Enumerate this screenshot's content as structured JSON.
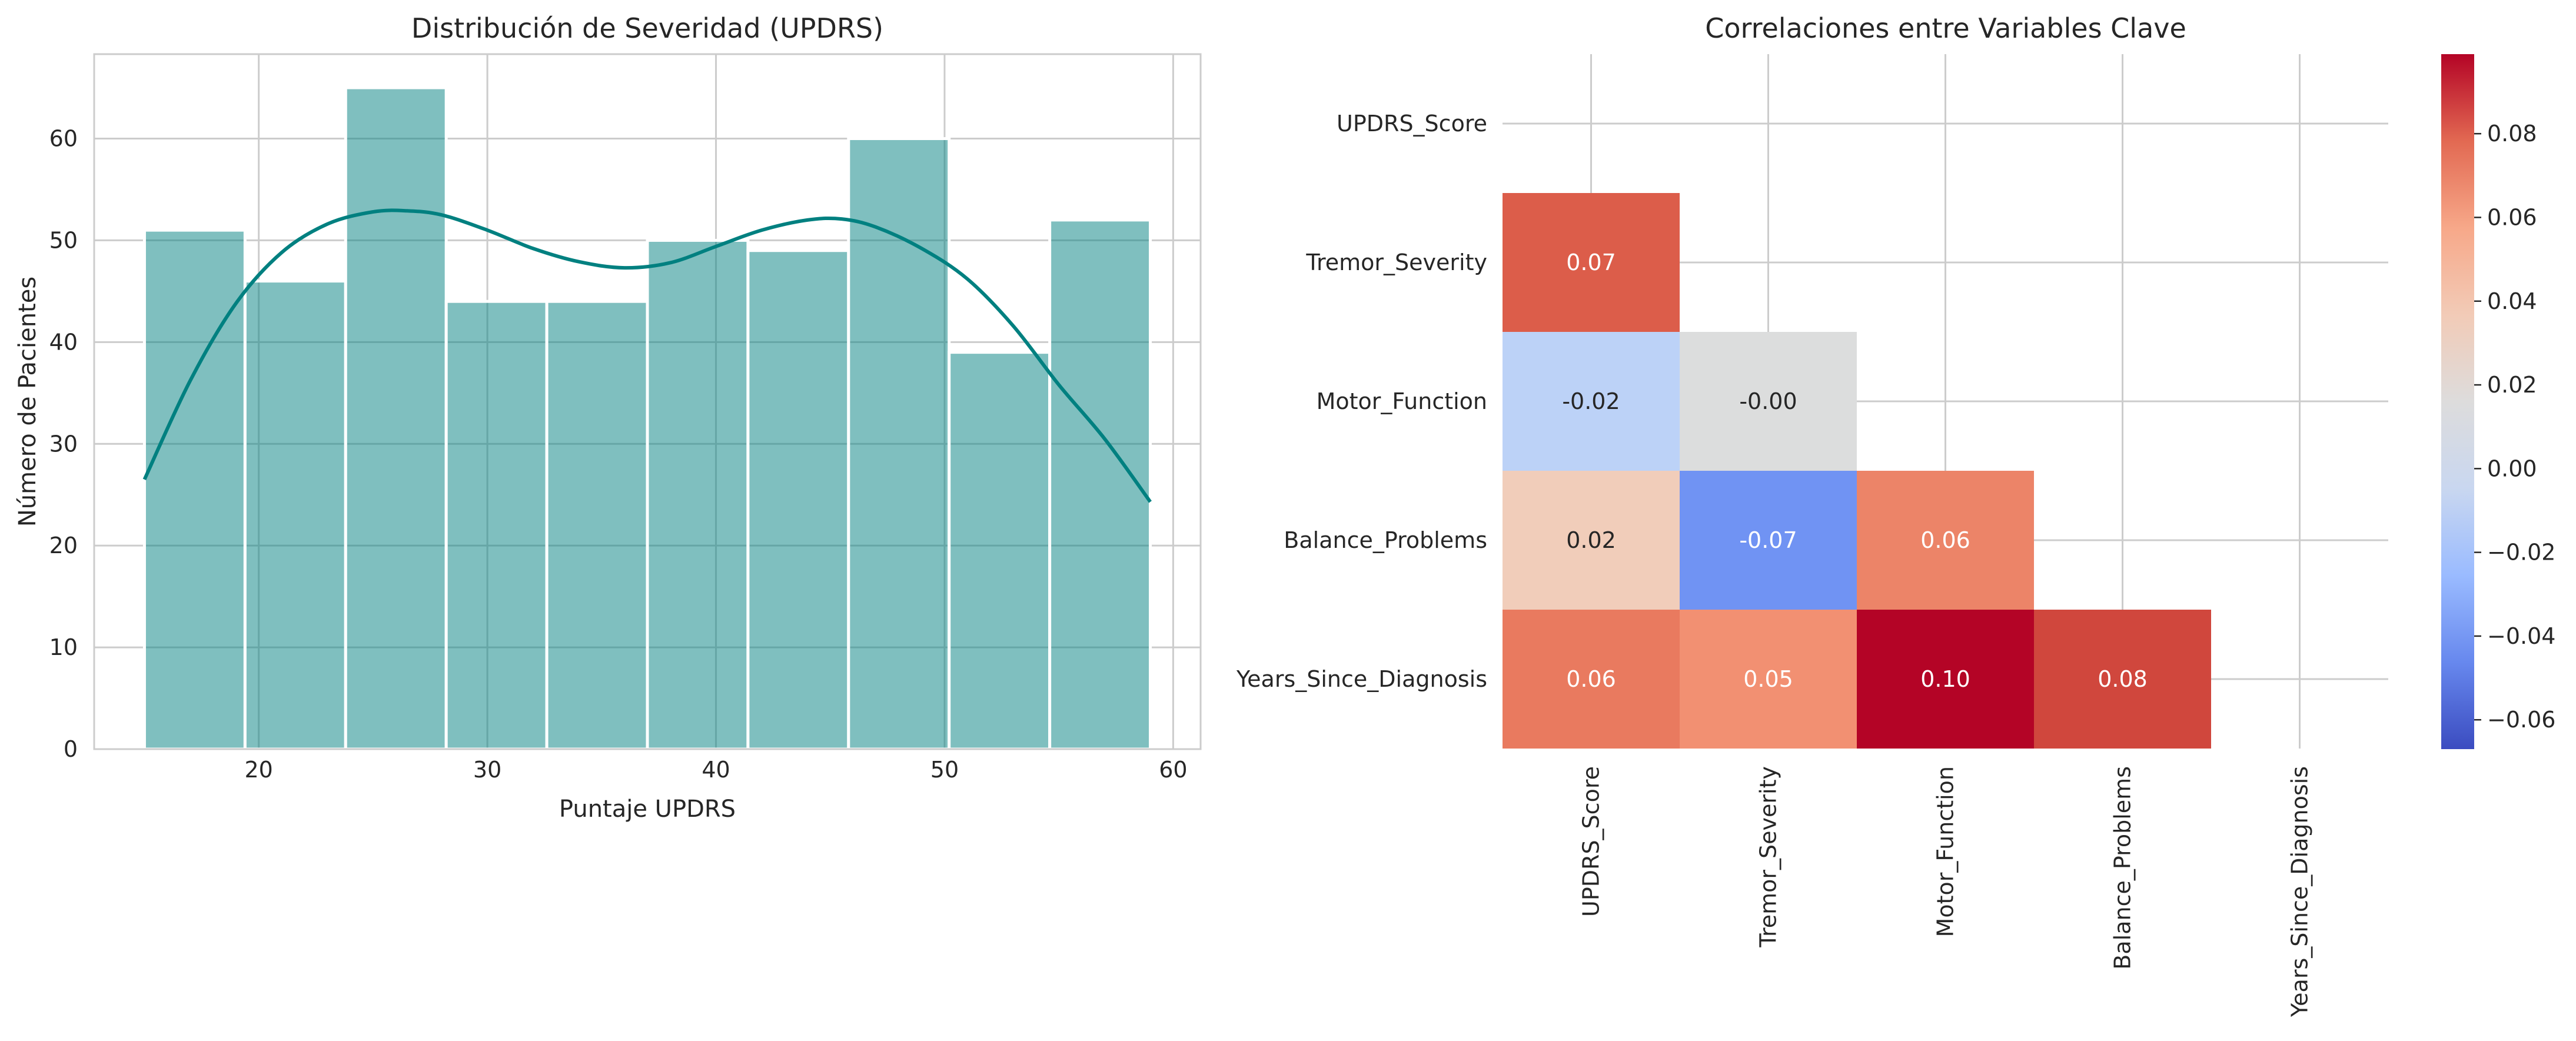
{
  "chart_data": [
    {
      "type": "bar",
      "subtype": "histogram_with_kde",
      "title": "Distribución de Severidad (UPDRS)",
      "xlabel": "Puntaje UPDRS",
      "ylabel": "Número de Pacientes",
      "xlim": [
        12.8,
        61.2
      ],
      "ylim": [
        0,
        68.3
      ],
      "xticks": [
        "20",
        "30",
        "40",
        "50",
        "60"
      ],
      "yticks": [
        "0",
        "10",
        "20",
        "30",
        "40",
        "50",
        "60"
      ],
      "bin_edges": [
        15,
        19.4,
        23.8,
        28.2,
        32.6,
        37.0,
        41.4,
        45.8,
        50.2,
        54.6,
        59
      ],
      "values": [
        51,
        46,
        65,
        44,
        44,
        50,
        49,
        60,
        39,
        52
      ],
      "bar_color": "#008080",
      "kde": {
        "x": [
          15,
          17,
          19,
          21,
          23,
          25,
          26.5,
          28,
          30,
          32,
          34,
          36,
          38,
          40,
          42,
          44,
          45.5,
          47,
          49,
          51,
          53,
          55,
          57,
          59
        ],
        "y": [
          26.5,
          36.2,
          43.8,
          48.8,
          51.6,
          52.8,
          52.9,
          52.5,
          51.0,
          49.2,
          47.9,
          47.3,
          47.8,
          49.4,
          51.0,
          52.0,
          52.1,
          51.3,
          49.2,
          46.2,
          41.6,
          35.8,
          30.5,
          24.3
        ]
      },
      "grid": true
    },
    {
      "type": "heatmap",
      "title": "Correlaciones entre Variables Clave",
      "row_labels": [
        "UPDRS_Score",
        "Tremor_Severity",
        "Motor_Function",
        "Balance_Problems",
        "Years_Since_Diagnosis"
      ],
      "col_labels": [
        "UPDRS_Score",
        "Tremor_Severity",
        "Motor_Function",
        "Balance_Problems",
        "Years_Since_Diagnosis"
      ],
      "cells": [
        {
          "row": 1,
          "col": 0,
          "value": 0.07,
          "label": "0.07",
          "color": "#dc5d4a"
        },
        {
          "row": 2,
          "col": 0,
          "value": -0.02,
          "label": "-0.02",
          "color": "#bcd2f7"
        },
        {
          "row": 2,
          "col": 1,
          "value": -0.0,
          "label": "-0.00",
          "color": "#dcdddd"
        },
        {
          "row": 3,
          "col": 0,
          "value": 0.02,
          "label": "0.02",
          "color": "#f1cdba"
        },
        {
          "row": 3,
          "col": 1,
          "value": -0.07,
          "label": "-0.07",
          "color": "#7093f3"
        },
        {
          "row": 3,
          "col": 2,
          "value": 0.06,
          "label": "0.06",
          "color": "#ec8468"
        },
        {
          "row": 4,
          "col": 0,
          "value": 0.06,
          "label": "0.06",
          "color": "#e97a5f"
        },
        {
          "row": 4,
          "col": 1,
          "value": 0.05,
          "label": "0.05",
          "color": "#f29072"
        },
        {
          "row": 4,
          "col": 2,
          "value": 0.1,
          "label": "0.10",
          "color": "#b40426"
        },
        {
          "row": 4,
          "col": 3,
          "value": 0.08,
          "label": "0.08",
          "color": "#d0473d"
        }
      ],
      "colorbar": {
        "vmin": -0.067,
        "vmax": 0.099,
        "colormap": "coolwarm",
        "ticks": [
          -0.06,
          -0.04,
          -0.02,
          0.0,
          0.02,
          0.04,
          0.06,
          0.08
        ],
        "tick_labels": [
          "−0.06",
          "−0.04",
          "−0.02",
          "0.00",
          "0.02",
          "0.04",
          "0.06",
          "0.08"
        ],
        "stops": [
          "#3b4cc0",
          "#6788ee",
          "#9abbff",
          "#c9d7f0",
          "#dddcdc",
          "#f2cbb7",
          "#f7a889",
          "#e26952",
          "#b40426"
        ]
      },
      "grid": true
    }
  ]
}
